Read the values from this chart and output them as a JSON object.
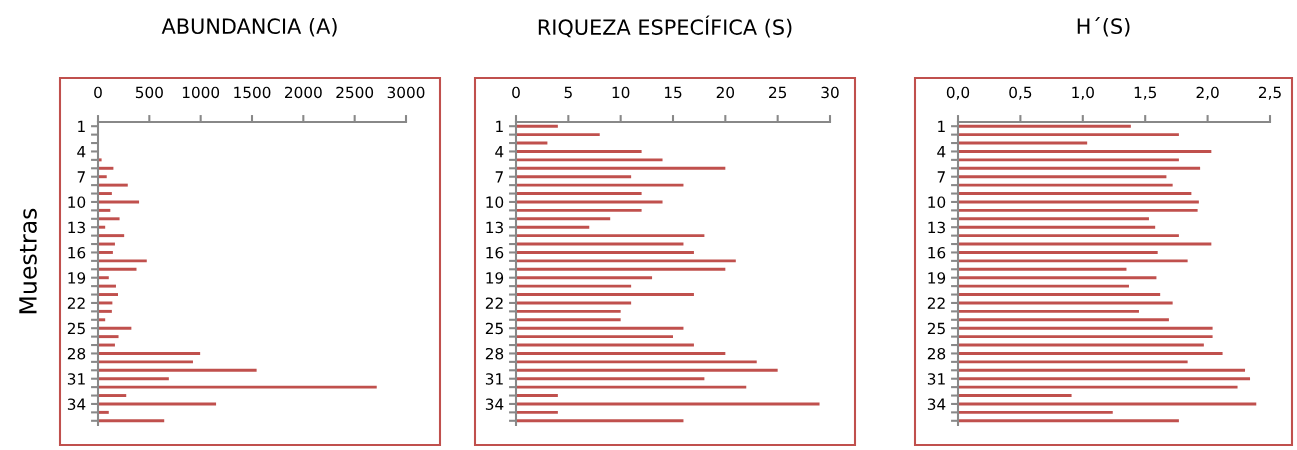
{
  "chart_data": [
    {
      "type": "bar",
      "orientation": "horizontal",
      "title": "ABUNDANCIA (A)",
      "ylabel": "Muestras",
      "categories": [
        "1",
        null,
        null,
        "4",
        null,
        null,
        "7",
        null,
        null,
        "10",
        null,
        null,
        "13",
        null,
        null,
        "16",
        null,
        null,
        "19",
        null,
        null,
        "22",
        null,
        null,
        "25",
        null,
        null,
        "28",
        null,
        null,
        "31",
        null,
        null,
        "34",
        null,
        null
      ],
      "values": [
        0,
        3,
        0,
        5,
        35,
        150,
        85,
        290,
        135,
        400,
        120,
        210,
        70,
        255,
        165,
        145,
        475,
        375,
        105,
        175,
        195,
        140,
        135,
        70,
        325,
        200,
        165,
        995,
        925,
        1545,
        690,
        2715,
        275,
        1150,
        105,
        645
      ],
      "color": "#c0504d",
      "xlim": [
        0,
        3000
      ],
      "xticks": [
        0,
        500,
        1000,
        1500,
        2000,
        2500,
        3000
      ],
      "grid": false
    },
    {
      "type": "bar",
      "orientation": "horizontal",
      "title": "RIQUEZA ESPECÍFICA (S)",
      "categories": [
        "1",
        null,
        null,
        "4",
        null,
        null,
        "7",
        null,
        null,
        "10",
        null,
        null,
        "13",
        null,
        null,
        "16",
        null,
        null,
        "19",
        null,
        null,
        "22",
        null,
        null,
        "25",
        null,
        null,
        "28",
        null,
        null,
        "31",
        null,
        null,
        "34",
        null,
        null
      ],
      "values": [
        4,
        8,
        3,
        12,
        14,
        20,
        11,
        16,
        12,
        14,
        12,
        9,
        7,
        18,
        16,
        17,
        21,
        20,
        13,
        11,
        17,
        11,
        10,
        10,
        16,
        15,
        17,
        20,
        23,
        25,
        18,
        22,
        4,
        29,
        4,
        16
      ],
      "color": "#c0504d",
      "xlim": [
        0,
        30
      ],
      "xticks": [
        0,
        5,
        10,
        15,
        20,
        25,
        30
      ],
      "grid": false
    },
    {
      "type": "bar",
      "orientation": "horizontal",
      "title": "H´(S)",
      "categories": [
        "1",
        null,
        null,
        "4",
        null,
        null,
        "7",
        null,
        null,
        "10",
        null,
        null,
        "13",
        null,
        null,
        "16",
        null,
        null,
        "19",
        null,
        null,
        "22",
        null,
        null,
        "25",
        null,
        null,
        "28",
        null,
        null,
        "31",
        null,
        null,
        "34",
        null,
        null
      ],
      "values": [
        1.385,
        1.77,
        1.035,
        2.03,
        1.77,
        1.94,
        1.67,
        1.72,
        1.87,
        1.93,
        1.92,
        1.53,
        1.58,
        1.77,
        2.03,
        1.6,
        1.84,
        1.35,
        1.59,
        1.37,
        1.62,
        1.72,
        1.45,
        1.69,
        2.04,
        2.04,
        1.97,
        2.12,
        1.84,
        2.3,
        2.34,
        2.24,
        0.91,
        2.39,
        1.24,
        1.77
      ],
      "color": "#c0504d",
      "xlim": [
        0,
        2.5
      ],
      "xticks": [
        {
          "value": 0,
          "label": "0,0"
        },
        {
          "value": 0.5,
          "label": "0,5"
        },
        {
          "value": 1,
          "label": "1,0"
        },
        {
          "value": 1.5,
          "label": "1,5"
        },
        {
          "value": 2,
          "label": "2,0"
        },
        {
          "value": 2.5,
          "label": "2,5"
        }
      ],
      "grid": false
    }
  ]
}
